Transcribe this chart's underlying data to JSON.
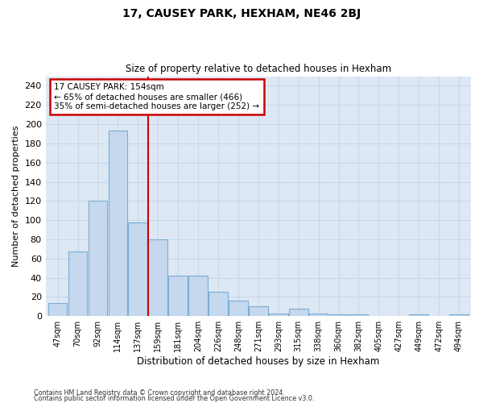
{
  "title": "17, CAUSEY PARK, HEXHAM, NE46 2BJ",
  "subtitle": "Size of property relative to detached houses in Hexham",
  "xlabel": "Distribution of detached houses by size in Hexham",
  "ylabel": "Number of detached properties",
  "bar_labels": [
    "47sqm",
    "70sqm",
    "92sqm",
    "114sqm",
    "137sqm",
    "159sqm",
    "181sqm",
    "204sqm",
    "226sqm",
    "248sqm",
    "271sqm",
    "293sqm",
    "315sqm",
    "338sqm",
    "360sqm",
    "382sqm",
    "405sqm",
    "427sqm",
    "449sqm",
    "472sqm",
    "494sqm"
  ],
  "bar_values": [
    14,
    67,
    120,
    193,
    98,
    80,
    42,
    42,
    25,
    16,
    10,
    3,
    8,
    3,
    2,
    2,
    0,
    0,
    2,
    0,
    2
  ],
  "bar_color": "#c5d8ee",
  "bar_edge_color": "#7aadd4",
  "vline_x": 4.5,
  "vline_color": "#cc0000",
  "annotation_line1": "17 CAUSEY PARK: 154sqm",
  "annotation_line2": "← 65% of detached houses are smaller (466)",
  "annotation_line3": "35% of semi-detached houses are larger (252) →",
  "annotation_box_color": "#cc0000",
  "ylim": [
    0,
    250
  ],
  "yticks": [
    0,
    20,
    40,
    60,
    80,
    100,
    120,
    140,
    160,
    180,
    200,
    220,
    240
  ],
  "grid_color": "#c8d8eb",
  "background_color": "#dde8f4",
  "footer_line1": "Contains HM Land Registry data © Crown copyright and database right 2024.",
  "footer_line2": "Contains public sector information licensed under the Open Government Licence v3.0."
}
